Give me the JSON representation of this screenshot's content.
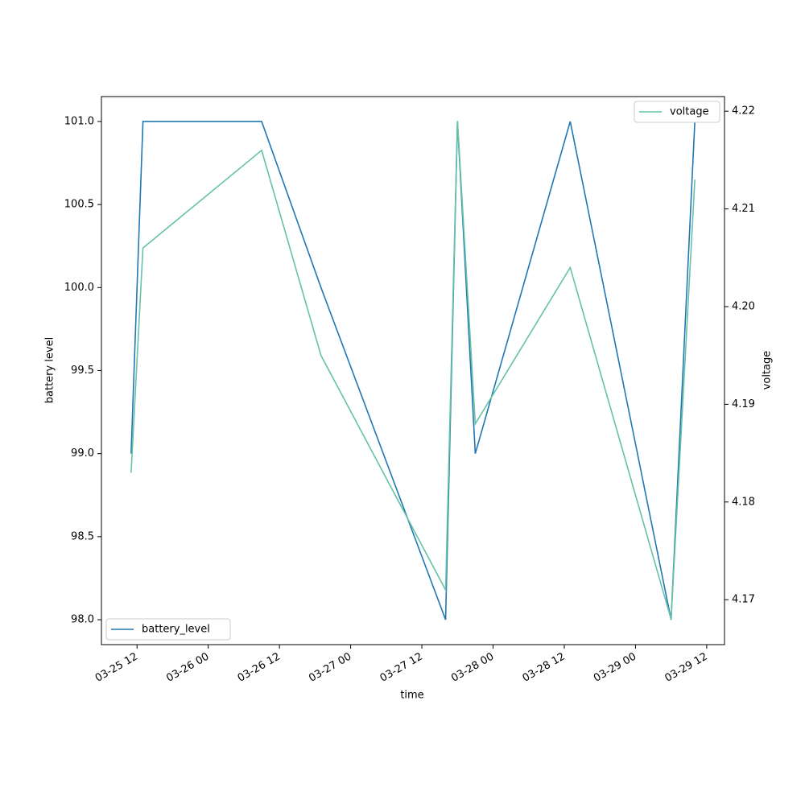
{
  "chart_data": {
    "type": "line",
    "x_label": "time",
    "y_label": "battery level",
    "y2_label": "voltage",
    "xlim": [
      "03-25 06",
      "03-29 15"
    ],
    "xticks": [
      "03-25 12",
      "03-26 00",
      "03-26 12",
      "03-27 00",
      "03-27 12",
      "03-28 00",
      "03-28 12",
      "03-29 00",
      "03-29 12"
    ],
    "ylim": [
      97.85,
      101.15
    ],
    "yticks": [
      {
        "value": 98,
        "label": "98.0"
      },
      98.5,
      {
        "value": 99,
        "label": "99.0"
      },
      99.5,
      {
        "value": 100,
        "label": "100.0"
      },
      100.5,
      {
        "value": 101,
        "label": "101.0"
      }
    ],
    "y2lim": [
      4.1654,
      4.2215
    ],
    "y2ticks": [
      4.17,
      4.18,
      4.19,
      {
        "value": 4.2,
        "label": "4.20"
      },
      4.21,
      4.22
    ],
    "series": [
      {
        "name": "battery_level",
        "color": "#1f77b4",
        "axis": "y",
        "legend": "lower left",
        "x": [
          "03-25 11",
          "03-25 13",
          "03-26 09",
          "03-26 19",
          "03-27 16",
          "03-27 18",
          "03-27 21",
          "03-28 13",
          "03-29 06",
          "03-29 10"
        ],
        "values": [
          99,
          101,
          101,
          100,
          98,
          101,
          99,
          101,
          98,
          101
        ]
      },
      {
        "name": "voltage",
        "color": "#66c2a5",
        "axis": "y2",
        "legend": "upper right",
        "x": [
          "03-25 11",
          "03-25 13",
          "03-25 15",
          "03-26 09",
          "03-26 19",
          "03-27 16",
          "03-27 18",
          "03-27 21",
          "03-28 13",
          "03-29 06",
          "03-29 10"
        ],
        "values": [
          4.183,
          4.206,
          4.207,
          4.216,
          4.195,
          4.171,
          4.219,
          4.188,
          4.204,
          4.168,
          4.213
        ]
      }
    ]
  }
}
